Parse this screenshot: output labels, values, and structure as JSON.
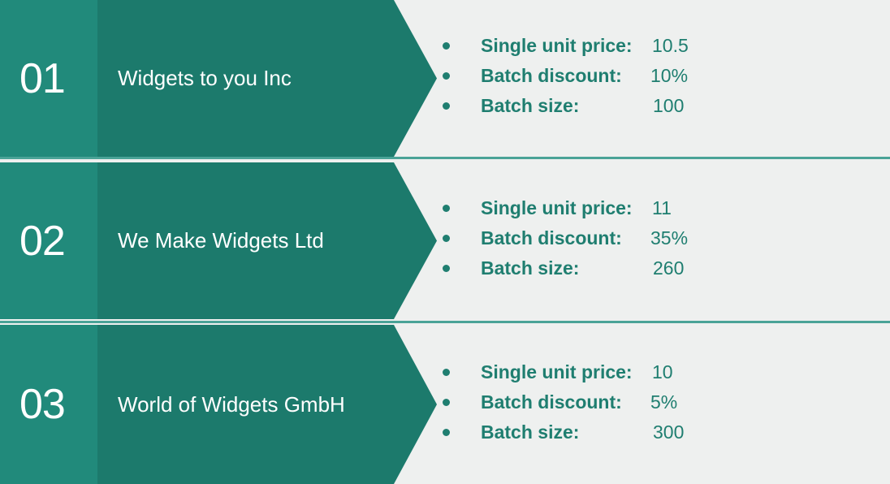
{
  "suppliers": [
    {
      "number": "01",
      "name": "Widgets to you Inc",
      "details": [
        {
          "label": "Single unit price:",
          "value": "10.5"
        },
        {
          "label": "Batch discount:",
          "value": "10%"
        },
        {
          "label": "Batch size:",
          "value": "100"
        }
      ]
    },
    {
      "number": "02",
      "name": "We Make Widgets Ltd",
      "details": [
        {
          "label": "Single unit price:",
          "value": "11"
        },
        {
          "label": "Batch discount:",
          "value": "35%"
        },
        {
          "label": "Batch size:",
          "value": "260"
        }
      ]
    },
    {
      "number": "03",
      "name": "World of Widgets GmbH",
      "details": [
        {
          "label": "Single unit price:",
          "value": "10"
        },
        {
          "label": "Batch discount:",
          "value": "5%"
        },
        {
          "label": "Batch size:",
          "value": "300"
        }
      ]
    }
  ],
  "colors": {
    "number_block": "#218a7b",
    "chevron": "#1c7a6c",
    "text_accent": "#1f7e70",
    "background": "#eef0ef",
    "separator": "#4aa397"
  }
}
